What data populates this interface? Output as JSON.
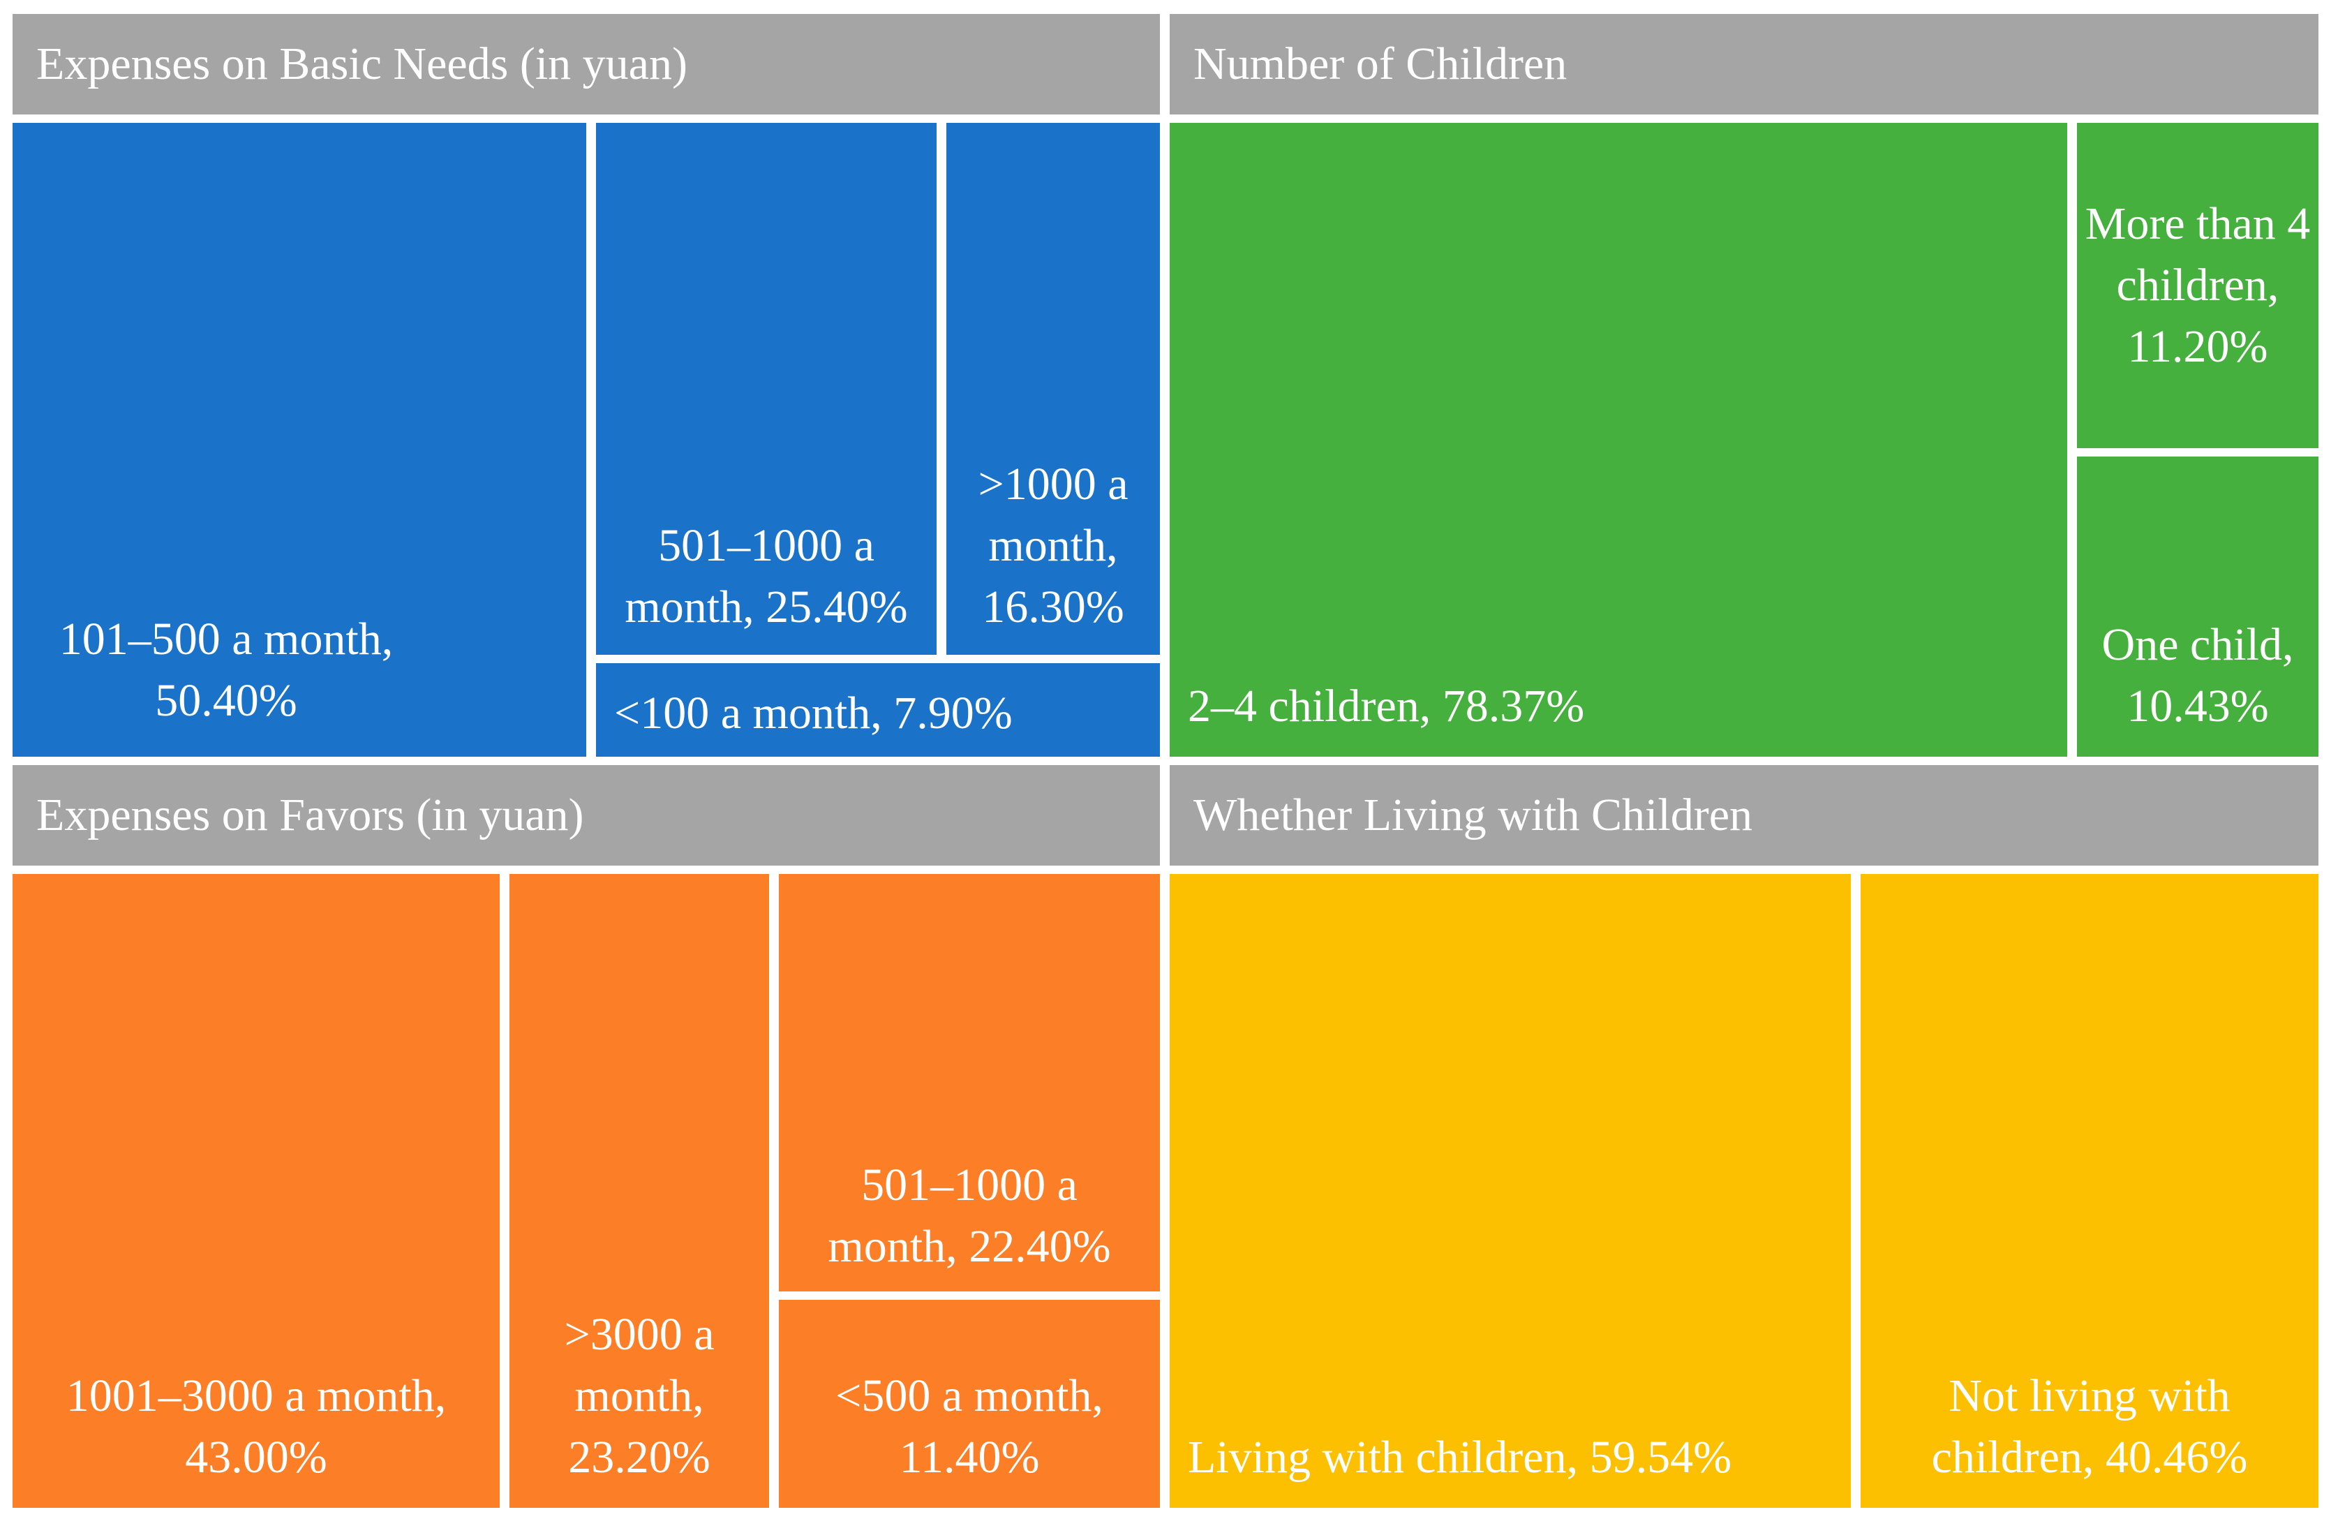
{
  "chart_data": {
    "type": "treemap",
    "title": "",
    "groups": [
      {
        "name": "Expenses on Basic Needs (in yuan)",
        "color": "#1a73c8",
        "items": [
          {
            "label": "101–500 a month, 50.40%",
            "category": "101–500 a month",
            "value": 50.4
          },
          {
            "label": "501–1000 a month, 25.40%",
            "category": "501–1000 a month",
            "value": 25.4
          },
          {
            "label": ">1000 a month, 16.30%",
            "category": ">1000 a month",
            "value": 16.3
          },
          {
            "label": "<100 a month, 7.90%",
            "category": "<100 a month",
            "value": 7.9
          }
        ]
      },
      {
        "name": "Number of Children",
        "color": "#45b03d",
        "items": [
          {
            "label": "2–4 children, 78.37%",
            "category": "2–4 children",
            "value": 78.37
          },
          {
            "label": "More than 4 children, 11.20%",
            "category": "More than 4 children",
            "value": 11.2
          },
          {
            "label": "One child, 10.43%",
            "category": "One child",
            "value": 10.43
          }
        ]
      },
      {
        "name": "Expenses on Favors (in yuan)",
        "color": "#fc7f28",
        "items": [
          {
            "label": "1001–3000 a month, 43.00%",
            "category": "1001–3000 a month",
            "value": 43.0
          },
          {
            "label": ">3000 a month, 23.20%",
            "category": ">3000 a month",
            "value": 23.2
          },
          {
            "label": "501–1000 a month, 22.40%",
            "category": "501–1000 a month",
            "value": 22.4
          },
          {
            "label": "<500 a month, 11.40%",
            "category": "<500 a month",
            "value": 11.4
          }
        ]
      },
      {
        "name": "Whether Living with Children",
        "color": "#fcc000",
        "items": [
          {
            "label": "Living with children, 59.54%",
            "category": "Living with children",
            "value": 59.54
          },
          {
            "label": "Not living with children, 40.46%",
            "category": "Not living with children",
            "value": 40.46
          }
        ]
      }
    ]
  }
}
